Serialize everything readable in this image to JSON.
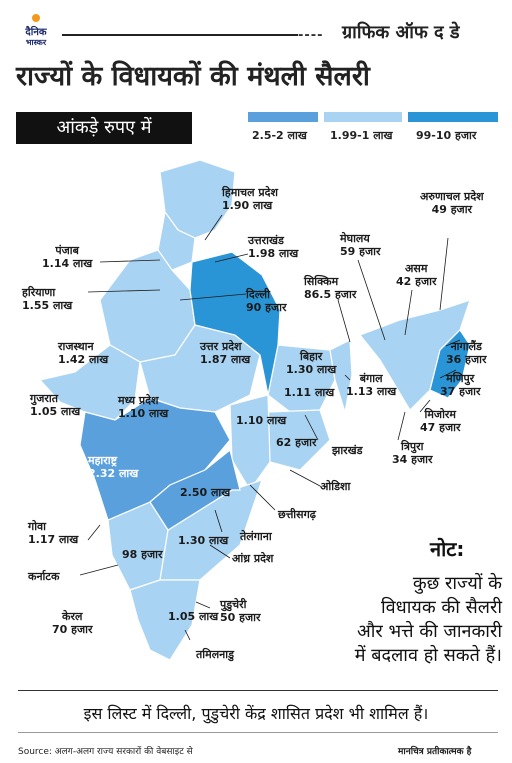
{
  "brand": {
    "logo_line1": "दैनिक",
    "logo_line2": "भास्कर"
  },
  "header": {
    "dashes": "----",
    "kicker": "ग्राफिक ऑफ द डे",
    "title": "राज्यों के विधायकों की मंथली सैलरी",
    "subtitle": "आंकड़े रुपए में"
  },
  "legend": [
    {
      "label": "2.5-2 लाख",
      "color": "#5aa0dc"
    },
    {
      "label": "1.99-1 लाख",
      "color": "#a9d3f2"
    },
    {
      "label": "99-10 हजार",
      "color": "#2a95d6"
    }
  ],
  "states": [
    {
      "name": "हिमाचल प्रदेश",
      "value": "1.90 लाख"
    },
    {
      "name": "पंजाब",
      "value": "1.14 लाख"
    },
    {
      "name": "उत्तराखंड",
      "value": "1.98 लाख"
    },
    {
      "name": "हरियाणा",
      "value": "1.55 लाख"
    },
    {
      "name": "दिल्ली",
      "value": "90 हजार"
    },
    {
      "name": "सिक्किम",
      "value": "86.5 हजार"
    },
    {
      "name": "मेघालय",
      "value": "59 हजार"
    },
    {
      "name": "अरुणाचल प्रदेश",
      "value": "49 हजार"
    },
    {
      "name": "असम",
      "value": "42 हजार"
    },
    {
      "name": "राजस्थान",
      "value": "1.42 लाख"
    },
    {
      "name": "उत्तर प्रदेश",
      "value": "1.87 लाख"
    },
    {
      "name": "बिहार",
      "value": "1.30 लाख"
    },
    {
      "name": "बंगाल",
      "value": "1.13 लाख"
    },
    {
      "name": "नागालैंड",
      "value": "36 हजार"
    },
    {
      "name": "मणिपुर",
      "value": "37 हजार"
    },
    {
      "name": "मिजोरम",
      "value": "47 हजार"
    },
    {
      "name": "त्रिपुरा",
      "value": "34 हजार"
    },
    {
      "name": "गुजरात",
      "value": "1.05 लाख"
    },
    {
      "name": "मध्य प्रदेश",
      "value": "1.10 लाख"
    },
    {
      "name": "झारखंड",
      "value": "1.11 लाख"
    },
    {
      "name": "ओडिशा",
      "value": "62 हजार"
    },
    {
      "name": "छत्तीसगढ़",
      "value": "1.10 लाख"
    },
    {
      "name": "महाराष्ट्र",
      "value": "2.32 लाख"
    },
    {
      "name": "तेलंगाना",
      "value": "2.50 लाख"
    },
    {
      "name": "गोवा",
      "value": "1.17 लाख"
    },
    {
      "name": "आंध्र प्रदेश",
      "value": "1.30 लाख"
    },
    {
      "name": "कर्नाटक",
      "value": "98 हजार"
    },
    {
      "name": "पुडुचेरी",
      "value": "50 हजार"
    },
    {
      "name": "केरल",
      "value": "70 हजार"
    },
    {
      "name": "तमिलनाडु",
      "value": "1.05 लाख"
    }
  ],
  "note": {
    "heading": "नोट:",
    "lines": [
      "कुछ राज्यों के",
      "विधायक की सैलरी",
      "और भत्ते की जानकारी",
      "में बदलाव हो सकते हैं।"
    ]
  },
  "footer": "इस लिस्ट में दिल्ली, पुडुचेरी केंद्र शासित प्रदेश भी शामिल हैं।",
  "source": "Source: अलग-अलग राज्य सरकारों की वेबसाइट से",
  "disclaimer": "मानचित्र प्रतीकात्मक है"
}
